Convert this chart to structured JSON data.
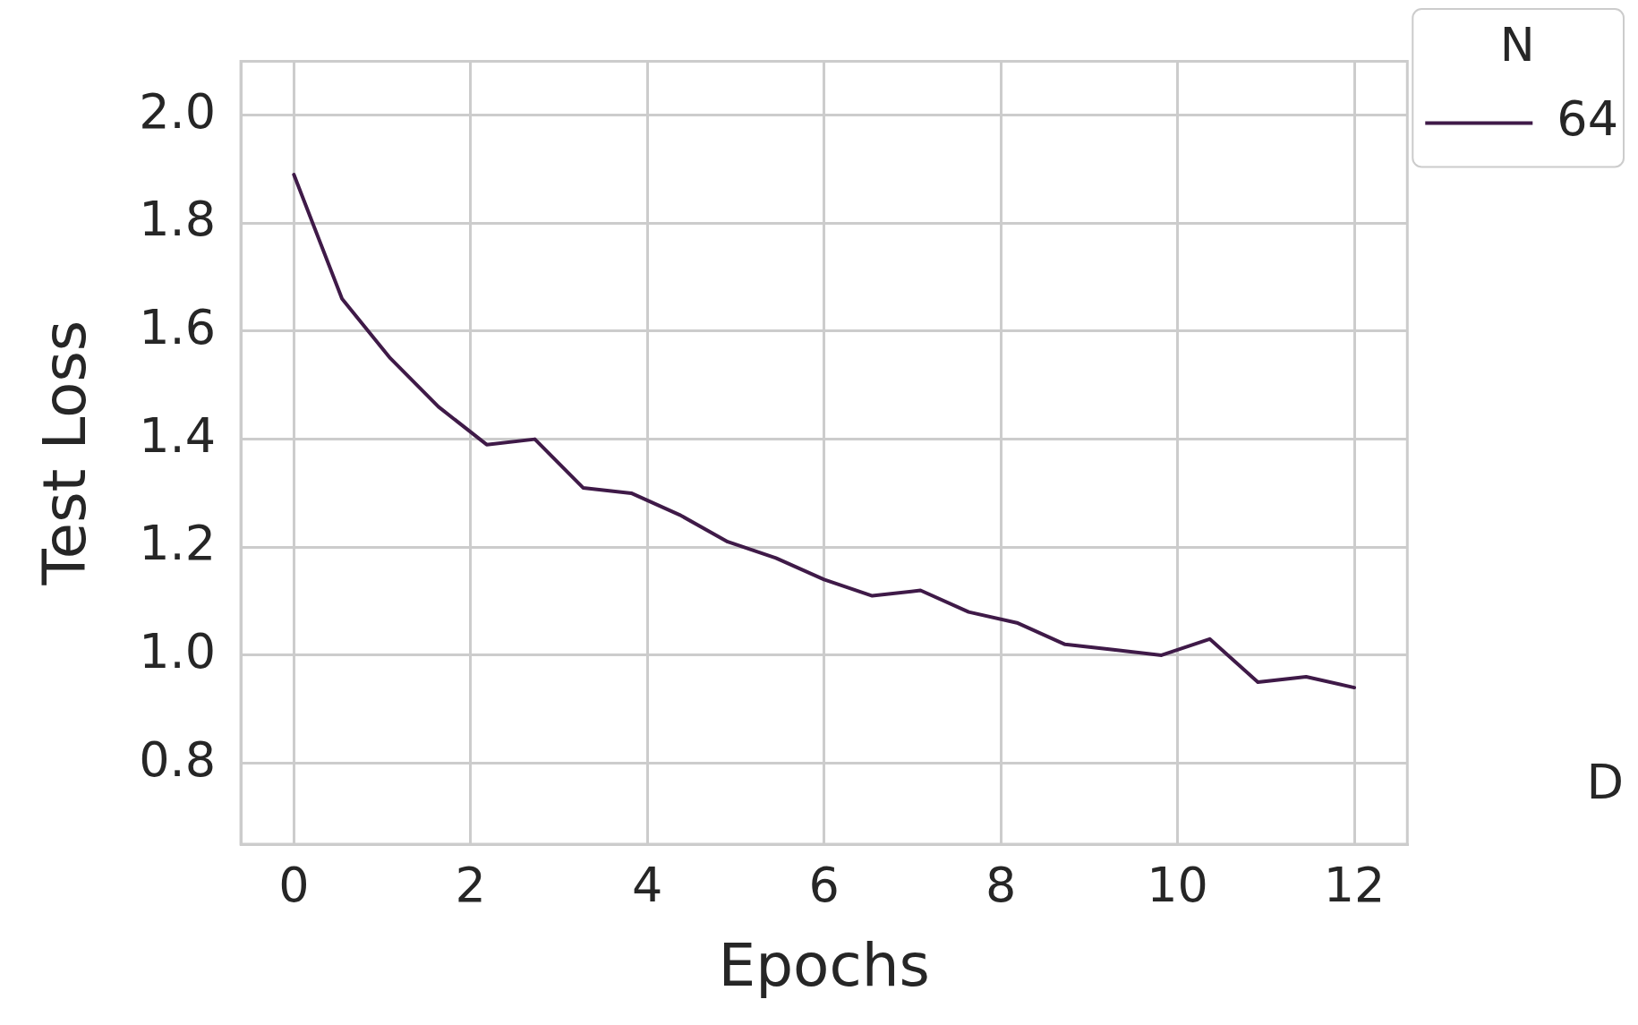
{
  "chart_data": {
    "type": "line",
    "xlabel": "Epochs",
    "ylabel": "Test Loss",
    "legend_title": "N",
    "series": [
      {
        "name": "64",
        "color": "#3f1a48",
        "x": [
          0,
          0.545,
          1.091,
          1.636,
          2.182,
          2.727,
          3.273,
          3.818,
          4.364,
          4.909,
          5.455,
          6,
          6.545,
          7.091,
          7.636,
          8.182,
          8.727,
          9.273,
          9.818,
          10.364,
          10.909,
          11.455,
          12
        ],
        "values": [
          1.89,
          1.66,
          1.55,
          1.46,
          1.39,
          1.4,
          1.31,
          1.3,
          1.26,
          1.21,
          1.18,
          1.14,
          1.11,
          1.12,
          1.08,
          1.06,
          1.02,
          1.01,
          1.0,
          1.03,
          0.95,
          0.96,
          0.94
        ]
      }
    ],
    "xlim": [
      -0.6,
      12.6
    ],
    "xticks": [
      0,
      2,
      4,
      6,
      8,
      10,
      12
    ],
    "ylim": [
      0.65,
      2.1
    ],
    "yticks": [
      {
        "value": 0.8,
        "label": "0.8"
      },
      {
        "value": 1.0,
        "label": "1.0"
      },
      {
        "value": 1.2,
        "label": "1.2"
      },
      {
        "value": 1.4,
        "label": "1.4"
      },
      {
        "value": 1.6,
        "label": "1.6"
      },
      {
        "value": 1.8,
        "label": "1.8"
      },
      {
        "value": 2.0,
        "label": "2.0"
      }
    ],
    "grid": true,
    "legend": "right",
    "marker": "none",
    "line_style": "solid",
    "annotations": [
      "D"
    ]
  }
}
